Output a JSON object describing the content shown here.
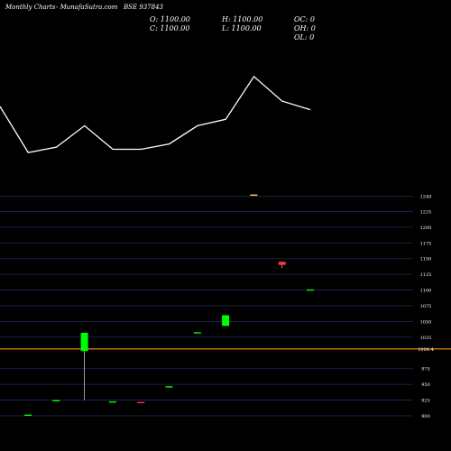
{
  "header": {
    "left": "Monthly Charts",
    "site": "- MunafaSutra.com",
    "symbol": "BSE 937843",
    "ohlc": {
      "open": "O: 1100.00",
      "close": "C: 1100.00",
      "high": "H: 1100.00",
      "low": "L: 1100.00",
      "oc": "OC: 0",
      "oh": "OH: 0",
      "ol": "OL: 0"
    }
  },
  "chart_data": [
    {
      "type": "line",
      "title": "",
      "xlabel": "",
      "ylabel": "",
      "series": [
        {
          "values": [
            122,
            165,
            160,
            140,
            162,
            162,
            157,
            140,
            134,
            94,
            117,
            125
          ]
        }
      ],
      "grid": false,
      "color": "#ffffff"
    },
    {
      "type": "candlestick",
      "title": "",
      "xlabel": "",
      "ylabel": "",
      "ylim": [
        900,
        1250
      ],
      "yticks": [
        {
          "value": 1249,
          "label": "1249"
        },
        {
          "value": 1225,
          "label": "1225"
        },
        {
          "value": 1200,
          "label": "1200"
        },
        {
          "value": 1175,
          "label": "1175"
        },
        {
          "value": 1150,
          "label": "1150"
        },
        {
          "value": 1125,
          "label": "1125"
        },
        {
          "value": 1100,
          "label": "1100"
        },
        {
          "value": 1075,
          "label": "1075"
        },
        {
          "value": 1050,
          "label": "1050"
        },
        {
          "value": 1025,
          "label": "1025"
        },
        {
          "value": 1006,
          "label": "1006.4"
        },
        {
          "value": 975,
          "label": "975"
        },
        {
          "value": 950,
          "label": "950"
        },
        {
          "value": 925,
          "label": "925"
        },
        {
          "value": 900,
          "label": "900"
        }
      ],
      "reference_line": {
        "value": 1006.4,
        "color": "#ff8c00"
      },
      "grid": true,
      "colors": {
        "up": "#00ff00",
        "down": "#ff3344",
        "doji_gold": "#ffd24d"
      },
      "candles": [
        {
          "open": 900,
          "close": 901,
          "high": 901,
          "low": 900,
          "color": "up"
        },
        {
          "open": 924,
          "close": 924,
          "high": 924,
          "low": 924,
          "color": "up"
        },
        {
          "open": 1003,
          "close": 1032,
          "high": 1032,
          "low": 925,
          "color": "up"
        },
        {
          "open": 922,
          "close": 922,
          "high": 922,
          "low": 922,
          "color": "up"
        },
        {
          "open": 921,
          "close": 921,
          "high": 921,
          "low": 921,
          "color": "down"
        },
        {
          "open": 946,
          "close": 946,
          "high": 946,
          "low": 946,
          "color": "up"
        },
        {
          "open": 1032,
          "close": 1032,
          "high": 1032,
          "low": 1032,
          "color": "up"
        },
        {
          "open": 1043,
          "close": 1060,
          "high": 1060,
          "low": 1043,
          "color": "up"
        },
        {
          "open": 1251,
          "close": 1251,
          "high": 1251,
          "low": 1251,
          "color": "doji_gold"
        },
        {
          "open": 1145,
          "close": 1140,
          "high": 1145,
          "low": 1135,
          "color": "down"
        },
        {
          "open": 1100,
          "close": 1100,
          "high": 1100,
          "low": 1100,
          "color": "up"
        }
      ]
    }
  ]
}
